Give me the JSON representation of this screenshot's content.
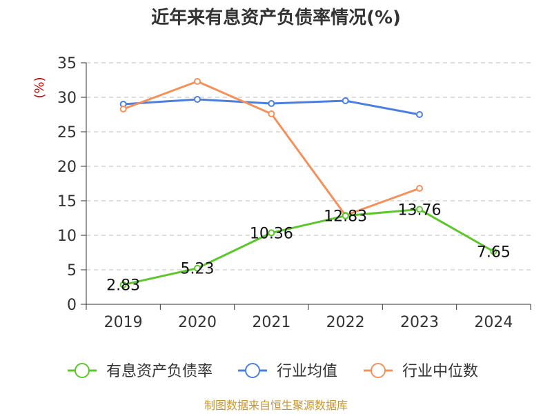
{
  "chart_data": {
    "type": "line",
    "title": "近年来有息资产负债率情况(%)",
    "ylabel": "(%)",
    "xlabel": "",
    "categories": [
      "2019",
      "2020",
      "2021",
      "2022",
      "2023",
      "2024"
    ],
    "ylim": [
      0,
      35
    ],
    "yticks": [
      0,
      5,
      10,
      15,
      20,
      25,
      30,
      35
    ],
    "grid": true,
    "legend_position": "bottom",
    "series": [
      {
        "name": "有息资产负债率",
        "color": "#5cc72a",
        "values": [
          2.83,
          5.23,
          10.36,
          12.83,
          13.76,
          7.65
        ],
        "labels": [
          "2.83",
          "5.23",
          "10.36",
          "12.83",
          "13.76",
          "7.65"
        ],
        "show_labels": true
      },
      {
        "name": "行业均值",
        "color": "#4a7fe0",
        "values": [
          29.0,
          29.7,
          29.1,
          29.5,
          27.5,
          null
        ],
        "show_labels": false
      },
      {
        "name": "行业中位数",
        "color": "#f5905a",
        "values": [
          28.3,
          32.3,
          27.6,
          12.9,
          16.8,
          null
        ],
        "show_labels": false
      }
    ]
  },
  "source": "制图数据来自恒生聚源数据库"
}
